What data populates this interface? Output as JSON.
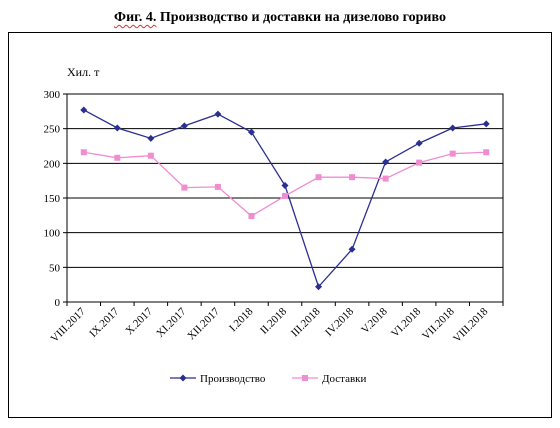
{
  "title": {
    "lead": "Фиг. 4.",
    "rest": " Производство и доставки на дизелово гориво"
  },
  "chart_data": {
    "type": "line",
    "title": "Фиг. 4. Производство и доставки на дизелово гориво",
    "ylabel": "Хил. т",
    "xlabel": "",
    "categories": [
      "VIII.2017",
      "IX.2017",
      "X.2017",
      "XI.2017",
      "XII.2017",
      "I.2018",
      "II.2018",
      "III.2018",
      "IV.2018",
      "V.2018",
      "VI.2018",
      "VII.2018",
      "VIII.2018"
    ],
    "ylim": [
      0,
      300
    ],
    "yticks": [
      0,
      50,
      100,
      150,
      200,
      250,
      300
    ],
    "grid": "horizontal",
    "legend_position": "bottom",
    "series": [
      {
        "name": "Производство",
        "color": "#2B2F8F",
        "marker": "diamond",
        "values": [
          277,
          251,
          236,
          254,
          271,
          245,
          168,
          22,
          76,
          202,
          229,
          251,
          257
        ]
      },
      {
        "name": "Доставки",
        "color": "#F08CD0",
        "marker": "square",
        "values": [
          216,
          208,
          211,
          165,
          166,
          124,
          153,
          180,
          180,
          178,
          201,
          214,
          216
        ]
      }
    ]
  }
}
